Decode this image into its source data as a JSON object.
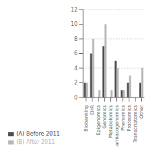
{
  "chart_data": {
    "type": "bar",
    "categories": [
      "Biobanking",
      "EHR",
      "Epigenomics",
      "Genomics",
      "Metabolomics",
      "Pharmacogenomics",
      "Phenomics",
      "Proteomics",
      "Transcriptomics",
      "Other"
    ],
    "series": [
      {
        "name": "(A) Before 2011",
        "color": "#505050",
        "values": [
          2,
          6,
          0,
          7,
          0,
          5,
          1,
          2,
          0,
          2
        ]
      },
      {
        "name": "(B) After 2011",
        "color": "#b8b8b8",
        "values": [
          2,
          8,
          1,
          10,
          1,
          4,
          1,
          3,
          0,
          4
        ]
      }
    ],
    "ylim": [
      0,
      12
    ],
    "yticks": [
      0,
      2,
      4,
      6,
      8,
      10,
      12
    ],
    "grid": true,
    "legend": "bottom"
  }
}
